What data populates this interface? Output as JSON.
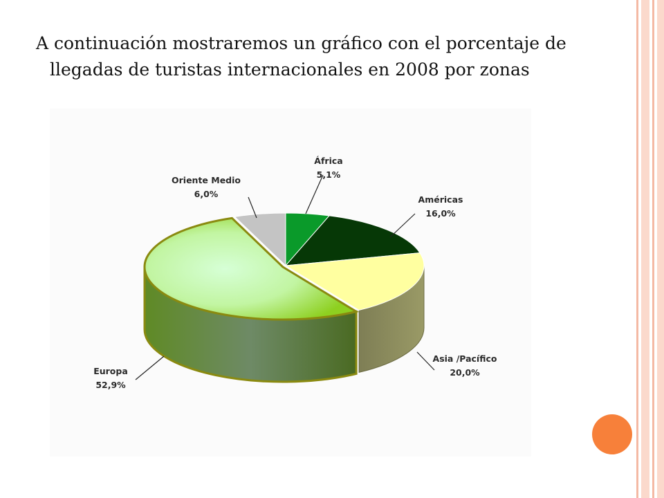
{
  "slide": {
    "title": "A continuación mostraremos un gráfico con el porcentaje de llegadas de turistas internacionales en 2008 por zonas",
    "colors": {
      "border_stripe": "#f4b9a4",
      "accent_dot": "#f7803a"
    }
  },
  "chart_data": {
    "type": "pie",
    "title": "",
    "categories": [
      "África",
      "Américas",
      "Asia /Pacífico",
      "Europa",
      "Oriente Medio"
    ],
    "values": [
      5.1,
      16.0,
      20.0,
      52.9,
      6.0
    ],
    "value_labels": [
      "5,1%",
      "16,0%",
      "20,0%",
      "52,9%",
      "6,0%"
    ],
    "colors": [
      "#0a9a2a",
      "#063806",
      "#ffffa0",
      "#b8f07a",
      "#c4c4c4"
    ],
    "three_d": true,
    "legend": "none",
    "data_labels": "outside-with-leader-lines"
  }
}
